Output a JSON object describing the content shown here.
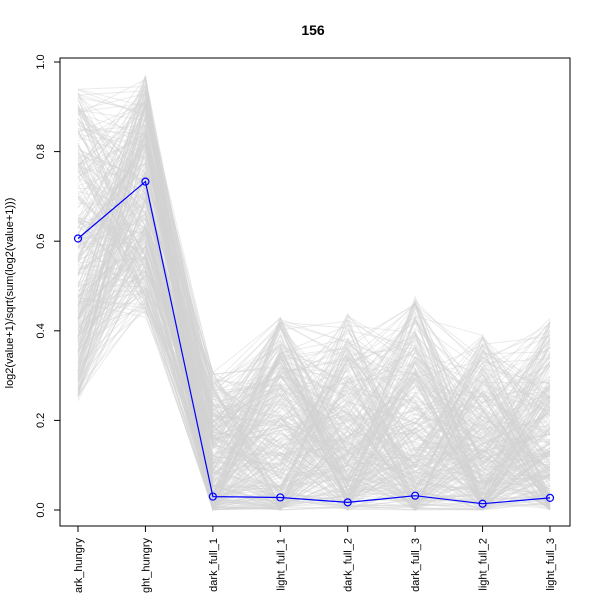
{
  "chart_data": {
    "type": "line",
    "title": "156",
    "xlabel": "",
    "ylabel": "log2(value+1)/sqrt(sum(log2(value+1)))",
    "categories": [
      "dark_hungry",
      "light_hungry",
      "dark_full_1",
      "light_full_1",
      "dark_full_2",
      "dark_full_3",
      "light_full_2",
      "light_full_3"
    ],
    "category_labels_shown": [
      "ark_hungry",
      "ght_hungry",
      "dark_full_1",
      "light_full_1",
      "dark_full_2",
      "dark_full_3",
      "light_full_2",
      "light_full_3"
    ],
    "ylim": [
      0,
      1
    ],
    "yticks": [
      "0.0",
      "0.2",
      "0.4",
      "0.6",
      "0.8",
      "1.0"
    ],
    "grid": false,
    "legend": "none",
    "background_series": {
      "color": "#d3d3d3",
      "count": 300,
      "value_ranges": [
        [
          0.24,
          0.94
        ],
        [
          0.43,
          0.97
        ],
        [
          0.0,
          0.31
        ],
        [
          0.0,
          0.43
        ],
        [
          0.0,
          0.44
        ],
        [
          0.0,
          0.48
        ],
        [
          0.0,
          0.39
        ],
        [
          0.0,
          0.43
        ]
      ]
    },
    "series": [
      {
        "color": "#0000ff",
        "marker": "open-circle",
        "values": [
          0.606,
          0.733,
          0.03,
          0.028,
          0.017,
          0.032,
          0.014,
          0.027
        ]
      }
    ]
  }
}
